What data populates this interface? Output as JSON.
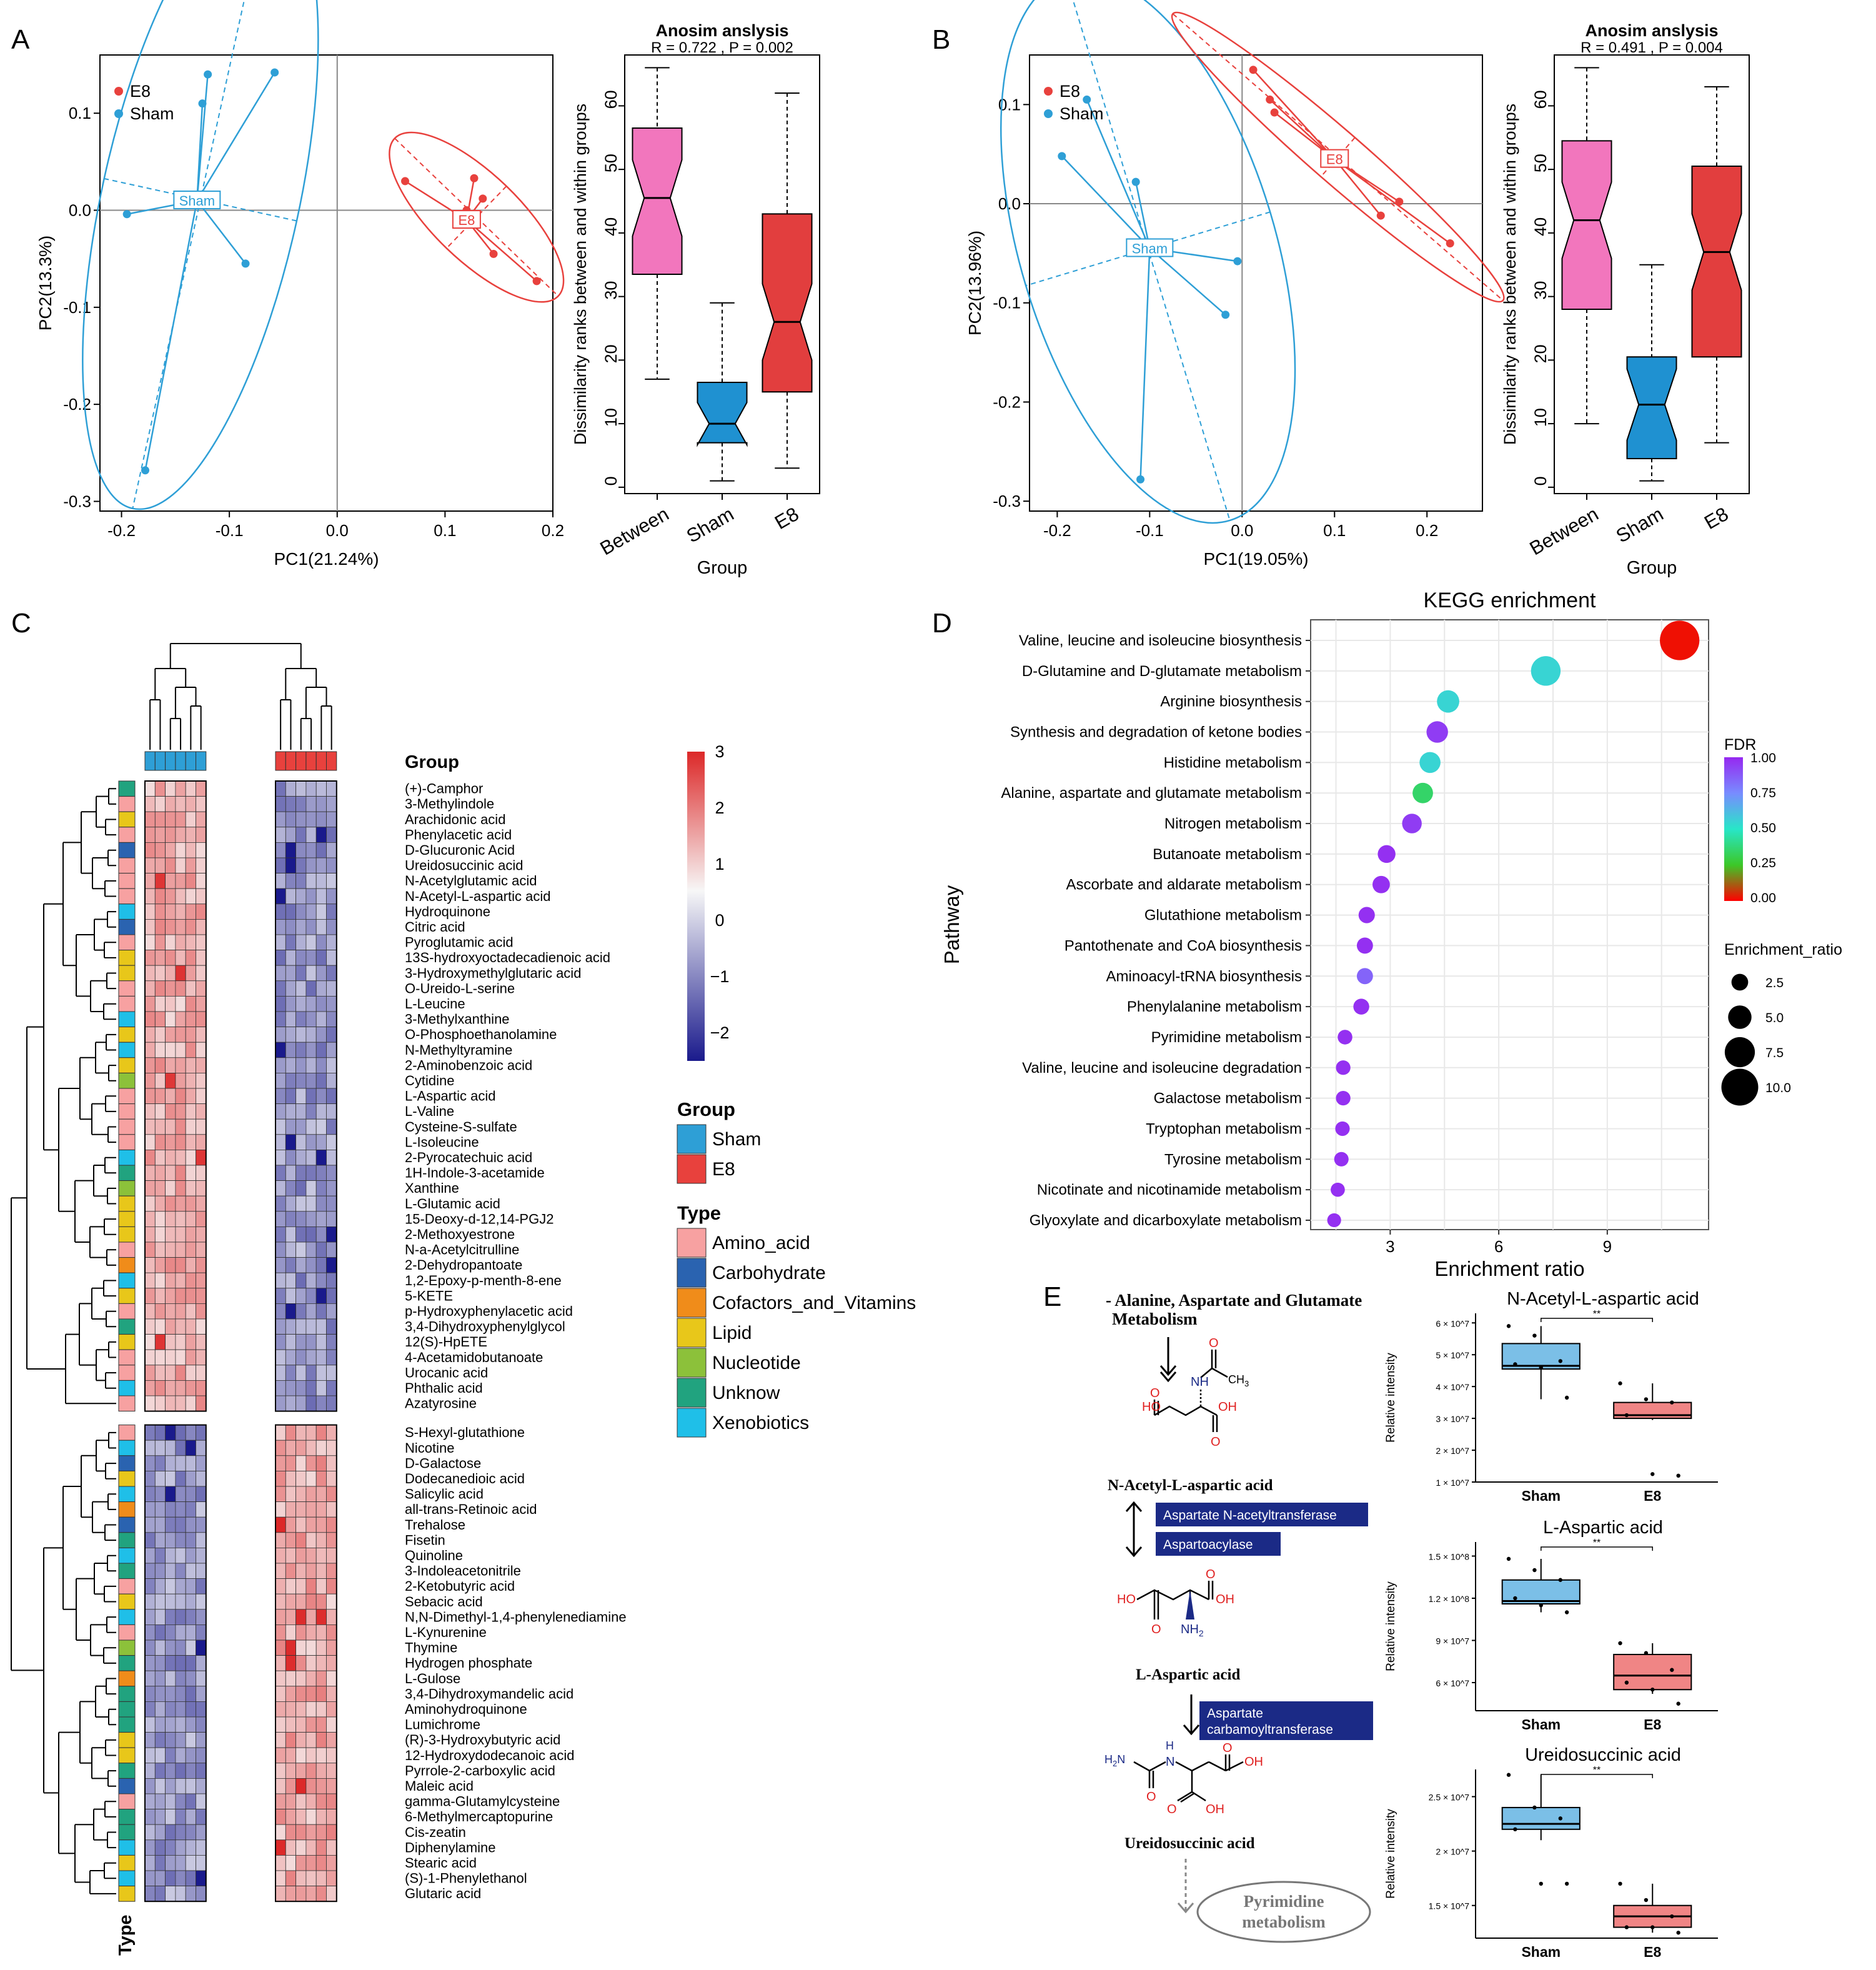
{
  "colors": {
    "e8": "#e8413d",
    "sham": "#2e9fd6",
    "between_box": "#f276bd",
    "sham_box": "#1f91d1",
    "e8_box": "#e23e3e",
    "enzyme_box": "#1b2a86",
    "light_sham": "#7bbfe7",
    "light_e8": "#f08585"
  },
  "panel_labels": [
    "A",
    "B",
    "C",
    "D",
    "E"
  ],
  "panelA": {
    "pca": {
      "type": "scatter",
      "xlabel": "PC1(21.24%)",
      "ylabel": "PC2(13.3%)",
      "xlim": [
        -0.22,
        0.2
      ],
      "ylim": [
        -0.31,
        0.16
      ],
      "xticks": [
        -0.2,
        -0.1,
        0.0,
        0.1,
        0.2
      ],
      "yticks": [
        0.1,
        0.0,
        -0.1,
        -0.2,
        -0.3
      ],
      "legend": [
        "E8",
        "Sham"
      ],
      "groups": [
        {
          "name": "Sham",
          "centroid_label": "Sham",
          "centroid": [
            -0.13,
            0.01
          ],
          "points": [
            [
              -0.12,
              0.14
            ],
            [
              -0.125,
              0.11
            ],
            [
              -0.058,
              0.142
            ],
            [
              -0.195,
              -0.004
            ],
            [
              -0.085,
              -0.055
            ],
            [
              -0.178,
              -0.268
            ]
          ]
        },
        {
          "name": "E8",
          "centroid_label": "E8",
          "centroid": [
            0.12,
            -0.01
          ],
          "points": [
            [
              0.063,
              0.03
            ],
            [
              0.127,
              0.033
            ],
            [
              0.135,
              0.012
            ],
            [
              0.12,
              0.0
            ],
            [
              0.145,
              -0.045
            ],
            [
              0.185,
              -0.073
            ]
          ]
        }
      ]
    },
    "anosim": {
      "type": "boxplot",
      "title": "Anosim anslysis",
      "subtitle": "R = 0.722 ,  P = 0.002",
      "xlabel": "Group",
      "ylabel": "Dissimilarity ranks between and within groups",
      "ylim": [
        -1,
        68
      ],
      "yticks": [
        0,
        10,
        20,
        30,
        40,
        50,
        60
      ],
      "categories": [
        "Between",
        "Sham",
        "E8"
      ],
      "boxes": [
        {
          "name": "Between",
          "min": 17,
          "q1": 33.5,
          "median": 45.5,
          "q3": 56.5,
          "max": 66
        },
        {
          "name": "Sham",
          "min": 1,
          "q1": 7,
          "median": 10,
          "q3": 16.5,
          "max": 29
        },
        {
          "name": "E8",
          "min": 3,
          "q1": 15,
          "median": 26,
          "q3": 43,
          "max": 62
        }
      ]
    }
  },
  "panelB": {
    "pca": {
      "type": "scatter",
      "xlabel": "PC1(19.05%)",
      "ylabel": "PC2(13.96%)",
      "xlim": [
        -0.23,
        0.26
      ],
      "ylim": [
        -0.31,
        0.15
      ],
      "xticks": [
        -0.2,
        -0.1,
        0.0,
        0.1,
        0.2
      ],
      "yticks": [
        0.1,
        0.0,
        -0.1,
        -0.2,
        -0.3
      ],
      "legend": [
        "E8",
        "Sham"
      ],
      "groups": [
        {
          "name": "Sham",
          "centroid_label": "Sham",
          "centroid": [
            -0.1,
            -0.045
          ],
          "points": [
            [
              -0.168,
              0.105
            ],
            [
              -0.195,
              0.048
            ],
            [
              -0.115,
              0.022
            ],
            [
              -0.005,
              -0.058
            ],
            [
              -0.018,
              -0.112
            ],
            [
              -0.11,
              -0.278
            ]
          ]
        },
        {
          "name": "E8",
          "centroid_label": "E8",
          "centroid": [
            0.1,
            0.045
          ],
          "points": [
            [
              0.012,
              0.135
            ],
            [
              0.03,
              0.105
            ],
            [
              0.035,
              0.092
            ],
            [
              0.17,
              0.002
            ],
            [
              0.15,
              -0.012
            ],
            [
              0.225,
              -0.04
            ]
          ]
        }
      ]
    },
    "anosim": {
      "type": "boxplot",
      "title": "Anosim anslysis",
      "subtitle": "R = 0.491 ,  P = 0.004",
      "xlabel": "Group",
      "ylabel": "Dissimilarity ranks between and within groups",
      "ylim": [
        -1,
        68
      ],
      "yticks": [
        0,
        10,
        20,
        30,
        40,
        50,
        60
      ],
      "categories": [
        "Between",
        "Sham",
        "E8"
      ],
      "boxes": [
        {
          "name": "Between",
          "min": 10,
          "q1": 28,
          "median": 42,
          "q3": 54.5,
          "max": 66
        },
        {
          "name": "Sham",
          "min": 1,
          "q1": 4.5,
          "median": 13,
          "q3": 20.5,
          "max": 35
        },
        {
          "name": "E8",
          "min": 7,
          "q1": 20.5,
          "median": 37,
          "q3": 50.5,
          "max": 63
        }
      ]
    }
  },
  "panelC": {
    "type": "heatmap",
    "group_label": "Group",
    "type_label": "Type",
    "colorbar_ticks": [
      3,
      2,
      1,
      0,
      -1,
      -2
    ],
    "legend_group_title": "Group",
    "legend_groups": [
      "Sham",
      "E8"
    ],
    "legend_type_title": "Type",
    "legend_types": [
      {
        "name": "Amino_acid",
        "color": "#f7a1a1"
      },
      {
        "name": "Carbohydrate",
        "color": "#2a63b0"
      },
      {
        "name": "Cofactors_and_Vitamins",
        "color": "#f08c1a"
      },
      {
        "name": "Lipid",
        "color": "#e8c71a"
      },
      {
        "name": "Nucleotide",
        "color": "#8cc13a"
      },
      {
        "name": "Unknow",
        "color": "#21a37f"
      },
      {
        "name": "Xenobiotics",
        "color": "#1fbfe8"
      }
    ],
    "metabolites_top": [
      "(+)-Camphor",
      "3-Methylindole",
      "Arachidonic acid",
      "Phenylacetic acid",
      "D-Glucuronic Acid",
      "Ureidosuccinic acid",
      "N-Acetylglutamic acid",
      "N-Acetyl-L-aspartic acid",
      "Hydroquinone",
      "Citric acid",
      "Pyroglutamic acid",
      "13S-hydroxyoctadecadienoic acid",
      "3-Hydroxymethylglutaric acid",
      "O-Ureido-L-serine",
      "L-Leucine",
      "3-Methylxanthine",
      "O-Phosphoethanolamine",
      "N-Methyltyramine",
      "2-Aminobenzoic acid",
      "Cytidine",
      "L-Aspartic acid",
      "L-Valine",
      "Cysteine-S-sulfate",
      "L-Isoleucine",
      "2-Pyrocatechuic acid",
      "1H-Indole-3-acetamide",
      "Xanthine",
      "L-Glutamic acid",
      "15-Deoxy-d-12,14-PGJ2",
      "2-Methoxyestrone",
      "N-a-Acetylcitrulline",
      "2-Dehydropantoate",
      "1,2-Epoxy-p-menth-8-ene",
      "5-KETE",
      "p-Hydroxyphenylacetic acid",
      "3,4-Dihydroxyphenylglycol",
      "12(S)-HpETE",
      "4-Acetamidobutanoate",
      "Urocanic acid",
      "Phthalic acid",
      "Azatyrosine"
    ],
    "types_top": [
      5,
      0,
      3,
      0,
      1,
      0,
      0,
      0,
      6,
      1,
      0,
      3,
      3,
      0,
      0,
      6,
      3,
      6,
      3,
      4,
      0,
      0,
      0,
      0,
      6,
      5,
      4,
      3,
      3,
      3,
      0,
      2,
      6,
      3,
      0,
      5,
      3,
      0,
      0,
      6,
      0
    ],
    "metabolites_bottom": [
      "S-Hexyl-glutathione",
      "Nicotine",
      "D-Galactose",
      "Dodecanedioic acid",
      "Salicylic acid",
      "all-trans-Retinoic acid",
      "Trehalose",
      "Fisetin",
      "Quinoline",
      "3-Indoleacetonitrile",
      "2-Ketobutyric acid",
      "Sebacic acid",
      "N,N-Dimethyl-1,4-phenylenediamine",
      "L-Kynurenine",
      "Thymine",
      "Hydrogen phosphate",
      "L-Gulose",
      "3,4-Dihydroxymandelic acid",
      "Aminohydroquinone",
      "Lumichrome",
      "(R)-3-Hydroxybutyric acid",
      "12-Hydroxydodecanoic acid",
      "Pyrrole-2-carboxylic acid",
      "Maleic acid",
      "gamma-Glutamylcysteine",
      "6-Methylmercaptopurine",
      "Cis-zeatin",
      "Diphenylamine",
      "Stearic acid",
      "(S)-1-Phenylethanol",
      "Glutaric acid"
    ],
    "types_bottom": [
      0,
      6,
      1,
      3,
      6,
      2,
      1,
      5,
      6,
      5,
      0,
      3,
      6,
      0,
      4,
      5,
      2,
      5,
      5,
      5,
      3,
      3,
      5,
      1,
      0,
      5,
      5,
      6,
      3,
      6,
      3
    ]
  },
  "panelD": {
    "type": "scatter",
    "title": "KEGG enrichment",
    "xlabel": "Enrichment ratio",
    "ylabel": "Pathway",
    "xlim": [
      0.8,
      11.8
    ],
    "xticks": [
      3,
      6,
      9
    ],
    "legend_fdr_title": "FDR",
    "fdr_ticks": [
      "1.00",
      "0.75",
      "0.50",
      "0.25",
      "0.00"
    ],
    "legend_size_title": "Enrichment_ratio",
    "size_ticks": [
      "2.5",
      "5.0",
      "7.5",
      "10.0"
    ],
    "pathways": [
      {
        "name": "Valine, leucine and isoleucine biosynthesis",
        "ratio": 11.0,
        "fdr": 0.02
      },
      {
        "name": "D-Glutamine and D-glutamate metabolism",
        "ratio": 7.3,
        "fdr": 0.55
      },
      {
        "name": "Arginine biosynthesis",
        "ratio": 4.6,
        "fdr": 0.55
      },
      {
        "name": "Synthesis and degradation of ketone bodies",
        "ratio": 4.3,
        "fdr": 0.95
      },
      {
        "name": "Histidine metabolism",
        "ratio": 4.1,
        "fdr": 0.55
      },
      {
        "name": "Alanine, aspartate and glutamate metabolism",
        "ratio": 3.9,
        "fdr": 0.35
      },
      {
        "name": "Nitrogen metabolism",
        "ratio": 3.6,
        "fdr": 0.95
      },
      {
        "name": "Butanoate metabolism",
        "ratio": 2.9,
        "fdr": 0.98
      },
      {
        "name": "Ascorbate and aldarate metabolism",
        "ratio": 2.75,
        "fdr": 0.98
      },
      {
        "name": "Glutathione metabolism",
        "ratio": 2.35,
        "fdr": 0.98
      },
      {
        "name": "Pantothenate and CoA biosynthesis",
        "ratio": 2.3,
        "fdr": 0.98
      },
      {
        "name": "Aminoacyl-tRNA biosynthesis",
        "ratio": 2.3,
        "fdr": 0.85
      },
      {
        "name": "Phenylalanine metabolism",
        "ratio": 2.2,
        "fdr": 0.98
      },
      {
        "name": "Pyrimidine metabolism",
        "ratio": 1.75,
        "fdr": 0.98
      },
      {
        "name": "Valine, leucine and isoleucine degradation",
        "ratio": 1.7,
        "fdr": 0.98
      },
      {
        "name": "Galactose metabolism",
        "ratio": 1.7,
        "fdr": 0.98
      },
      {
        "name": "Tryptophan metabolism",
        "ratio": 1.68,
        "fdr": 0.98
      },
      {
        "name": "Tyrosine metabolism",
        "ratio": 1.65,
        "fdr": 0.98
      },
      {
        "name": "Nicotinate and nicotinamide metabolism",
        "ratio": 1.55,
        "fdr": 0.98
      },
      {
        "name": "Glyoxylate and dicarboxylate metabolism",
        "ratio": 1.45,
        "fdr": 0.98
      }
    ]
  },
  "panelE": {
    "pathway_title_1": "- Alanine, Aspartate and Glutamate",
    "pathway_title_2": "Metabolism",
    "compound1": "N-Acetyl-L-aspartic acid",
    "compound2": "L-Aspartic acid",
    "compound3": "Ureidosuccinic acid",
    "enzyme1": "Aspartate N-acetyltransferase",
    "enzyme2": "Aspartoacylase",
    "enzyme3_line1": "Aspartate",
    "enzyme3_line2": "carbamoyltransferase",
    "downstream_1": "Pyrimidine",
    "downstream_2": "metabolism",
    "atoms": {
      "O": "O",
      "HO": "HO",
      "OH": "OH",
      "NH": "NH",
      "CH3": "CH",
      "CH3_sub": "3",
      "NH2": "NH",
      "NH2_sub": "2",
      "H2N": "H",
      "H2N_sub": "2",
      "H2N_N": "N",
      "H": "H",
      "N": "N"
    },
    "ylabel": "Relative intensity",
    "significance": "**",
    "categories": [
      "Sham",
      "E8"
    ],
    "plots": [
      {
        "title": "N-Acetyl-L-aspartic acid",
        "ylim": [
          10000000.0,
          63000000.0
        ],
        "yticks": [
          "1 × 10^7",
          "2 × 10^7",
          "3 × 10^7",
          "4 × 10^7",
          "5 × 10^7",
          "6 × 10^7"
        ],
        "ytick_values": [
          10000000.0,
          20000000.0,
          30000000.0,
          40000000.0,
          50000000.0,
          60000000.0
        ],
        "boxes": [
          {
            "name": "Sham",
            "min": 36000000.0,
            "q1": 45500000.0,
            "median": 46500000.0,
            "q3": 53500000.0,
            "max": 59000000.0
          },
          {
            "name": "E8",
            "min": 29500000.0,
            "q1": 30000000.0,
            "median": 31000000.0,
            "q3": 35000000.0,
            "max": 41000000.0
          }
        ],
        "points": [
          {
            "group": "Sham",
            "values": [
              59000000.0,
              56000000.0,
              48000000.0,
              47000000.0,
              46000000.0,
              36500000.0
            ]
          },
          {
            "group": "E8",
            "values": [
              41000000.0,
              36000000.0,
              35000000.0,
              31000000.0,
              12500000.0,
              12000000.0
            ]
          }
        ]
      },
      {
        "title": "L-Aspartic acid",
        "ylim": [
          40000000.0,
          160000000.0
        ],
        "yticks": [
          "6 × 10^7",
          "9 × 10^7",
          "1.2 × 10^8",
          "1.5 × 10^8"
        ],
        "ytick_values": [
          60000000.0,
          90000000.0,
          120000000.0,
          150000000.0
        ],
        "boxes": [
          {
            "name": "Sham",
            "min": 110000000.0,
            "q1": 116000000.0,
            "median": 118000000.0,
            "q3": 133000000.0,
            "max": 148000000.0
          },
          {
            "name": "E8",
            "min": 52000000.0,
            "q1": 55000000.0,
            "median": 65000000.0,
            "q3": 80000000.0,
            "max": 88000000.0
          }
        ],
        "points": [
          {
            "group": "Sham",
            "values": [
              148000000.0,
              140000000.0,
              133000000.0,
              120000000.0,
              115000000.0,
              110000000.0
            ]
          },
          {
            "group": "E8",
            "values": [
              88000000.0,
              81000000.0,
              69000000.0,
              60000000.0,
              55000000.0,
              45000000.0
            ]
          }
        ]
      },
      {
        "title": "Ureidosuccinic acid",
        "ylim": [
          12000000.0,
          27500000.0
        ],
        "yticks": [
          "1.5 × 10^7",
          "2 × 10^7",
          "2.5 × 10^7"
        ],
        "ytick_values": [
          15000000.0,
          20000000.0,
          25000000.0
        ],
        "boxes": [
          {
            "name": "Sham",
            "min": 21000000.0,
            "q1": 22000000.0,
            "median": 22500000.0,
            "q3": 24000000.0,
            "max": 27000000.0
          },
          {
            "name": "E8",
            "min": 12500000.0,
            "q1": 13000000.0,
            "median": 14000000.0,
            "q3": 15000000.0,
            "max": 17000000.0
          }
        ],
        "points": [
          {
            "group": "Sham",
            "values": [
              27000000.0,
              24000000.0,
              23000000.0,
              22000000.0,
              17000000.0,
              17000000.0
            ]
          },
          {
            "group": "E8",
            "values": [
              17000000.0,
              15500000.0,
              14000000.0,
              13000000.0,
              13000000.0,
              12500000.0
            ]
          }
        ]
      }
    ]
  }
}
